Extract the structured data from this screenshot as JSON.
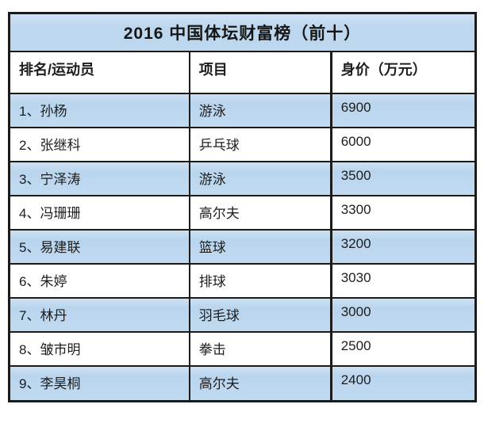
{
  "title": "2016 中国体坛财富榜（前十）",
  "colors": {
    "row_highlight": "#bcd7ee",
    "header_bg": "#ffffff",
    "border": "#1b1b1b",
    "text": "#1d1d1d"
  },
  "chart_data": {
    "type": "table",
    "title": "2016 中国体坛财富榜（前十）",
    "columns": [
      "排名/运动员",
      "项目",
      "身价（万元）"
    ],
    "rows": [
      [
        "1、孙杨",
        "游泳",
        "6900"
      ],
      [
        "2、张继科",
        "乒乓球",
        "6000"
      ],
      [
        "3、宁泽涛",
        "游泳",
        "3500"
      ],
      [
        "4、冯珊珊",
        "高尔夫",
        "3300"
      ],
      [
        "5、易建联",
        "篮球",
        "3200"
      ],
      [
        "6、朱婷",
        "排球",
        "3030"
      ],
      [
        "7、林丹",
        "羽毛球",
        "3000"
      ],
      [
        "8、皱市明",
        "拳击",
        "2500"
      ],
      [
        "9、李昊桐",
        "高尔夫",
        "2400"
      ]
    ],
    "layout": {
      "striped": true,
      "stripe_pattern": "odd-rows-blue",
      "visible_rows": 9
    }
  }
}
